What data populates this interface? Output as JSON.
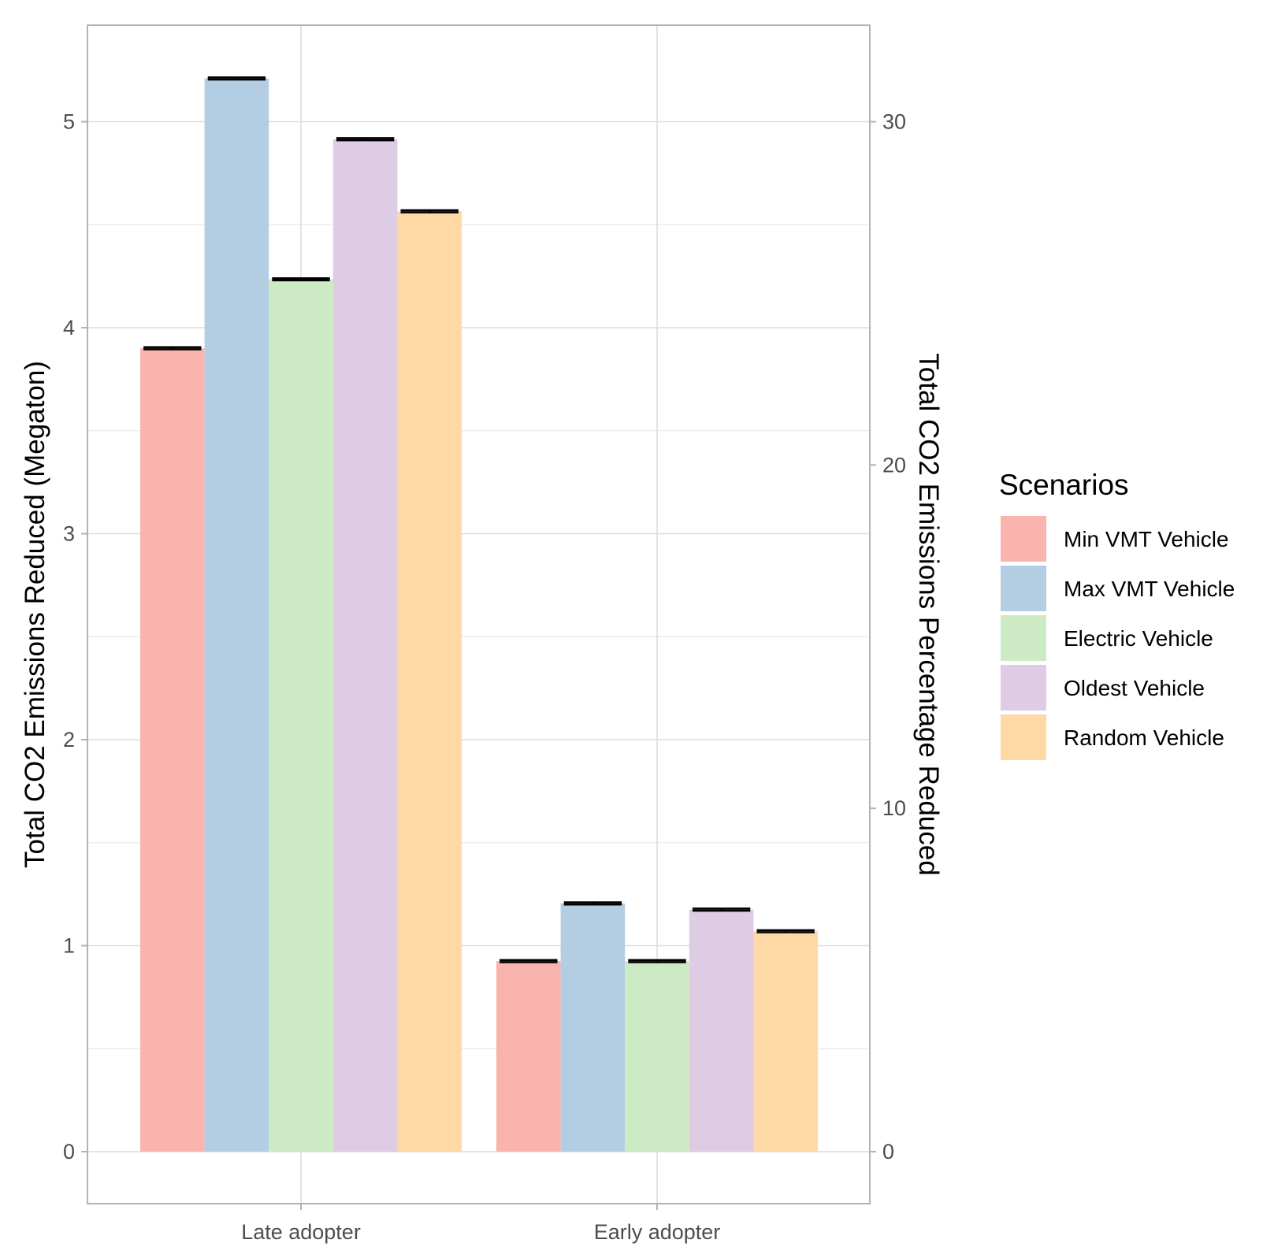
{
  "chart_data": {
    "type": "bar",
    "title": "",
    "xlabel": "",
    "ylabel": "Total CO2 Emissions Reduced (Megaton)",
    "y2label": "Total CO2 Emissions Percentage Reduced",
    "ylim": [
      -0.26,
      5.47
    ],
    "y_ticks": [
      0,
      1,
      2,
      3,
      4,
      5
    ],
    "y_tick_labels": [
      "0",
      "1",
      "2",
      "3",
      "4",
      "5"
    ],
    "y2_ticks": [
      0,
      10,
      20,
      30
    ],
    "y2_tick_labels": [
      "0",
      "10",
      "20",
      "30"
    ],
    "y2_scale": 6.0,
    "grid": true,
    "categories": [
      "Late adopter",
      "Early adopter"
    ],
    "legend": {
      "title": "Scenarios",
      "position": "right"
    },
    "series": [
      {
        "name": "Min VMT Vehicle",
        "color": "#F9B4AE",
        "values": [
          3.9,
          0.925
        ],
        "errors": [
          [
            3.895,
            3.905
          ],
          [
            0.92,
            0.93
          ]
        ]
      },
      {
        "name": "Max VMT Vehicle",
        "color": "#B3CDE3",
        "values": [
          5.21,
          1.205
        ],
        "errors": [
          [
            5.205,
            5.215
          ],
          [
            1.2,
            1.21
          ]
        ]
      },
      {
        "name": "Electric Vehicle",
        "color": "#CCEBC5",
        "values": [
          4.235,
          0.925
        ],
        "errors": [
          [
            4.23,
            4.24
          ],
          [
            0.92,
            0.93
          ]
        ]
      },
      {
        "name": "Oldest Vehicle",
        "color": "#DECBE4",
        "values": [
          4.915,
          1.175
        ],
        "errors": [
          [
            4.91,
            4.92
          ],
          [
            1.17,
            1.18
          ]
        ]
      },
      {
        "name": "Random Vehicle",
        "color": "#FED9A6",
        "values": [
          4.565,
          1.07
        ],
        "errors": [
          [
            4.56,
            4.57
          ],
          [
            1.065,
            1.075
          ]
        ]
      }
    ]
  }
}
